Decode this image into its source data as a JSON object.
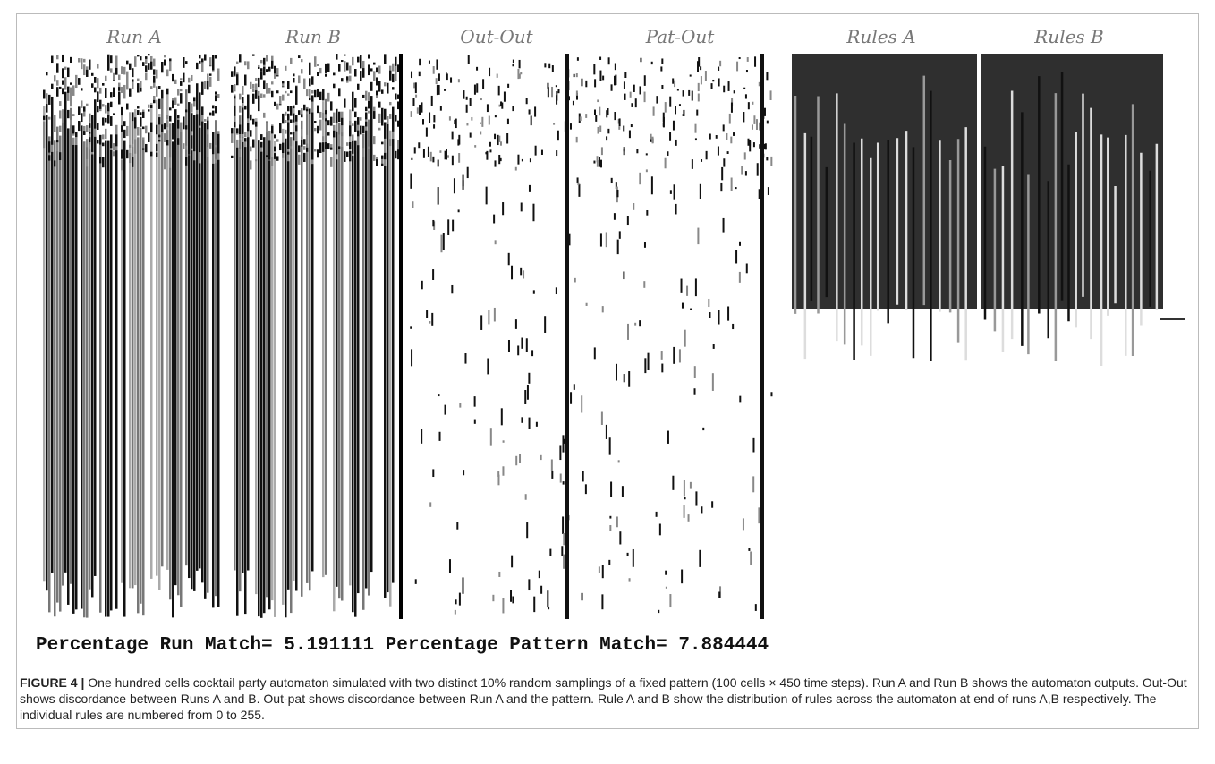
{
  "figure": {
    "panel_labels": [
      "Run A",
      "Run B",
      "Out-Out",
      "Pat-Out",
      "Rules A",
      "Rules B"
    ],
    "match_line": "Percentage Run Match= 5.191111 Percentage Pattern Match= 7.884444",
    "caption": {
      "label": "FIGURE 4 |",
      "text": "One hundred cells cocktail party automaton simulated with two distinct 10% random samplings of a fixed pattern (100 cells × 450 time steps). Run A and Run B shows the automaton outputs. Out-Out shows discordance between Runs A and B. Out-pat shows discordance between Run A and the pattern. Rule A and B show the distribution of rules across the automaton at end of runs A,B respectively. The individual rules are numbered from 0 to 255."
    }
  }
}
